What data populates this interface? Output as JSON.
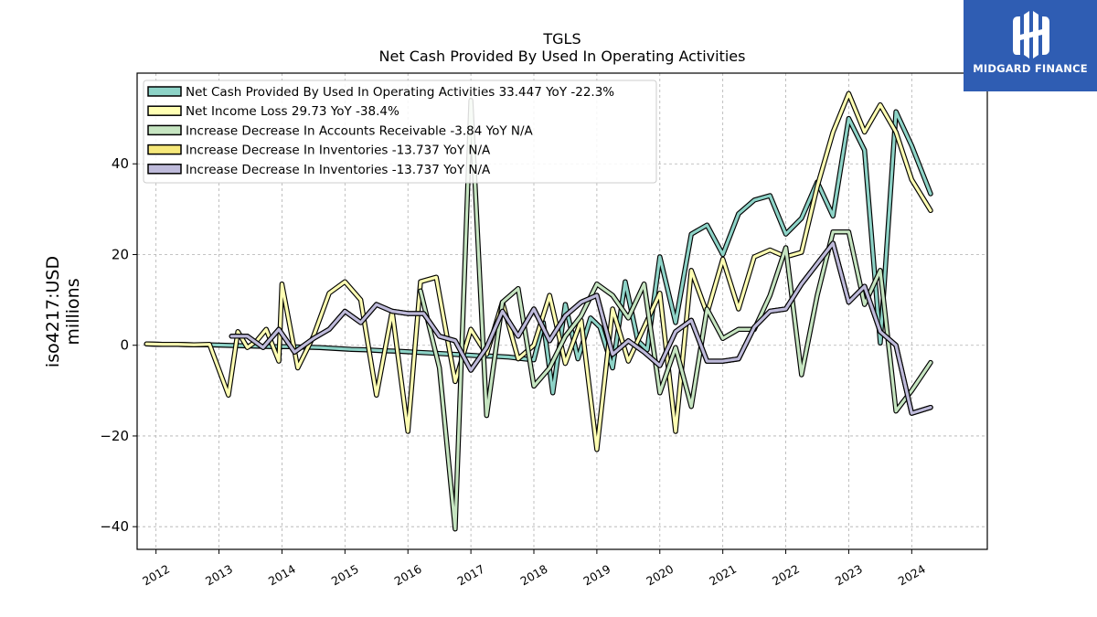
{
  "chart_data": {
    "type": "line",
    "title": "TGLS",
    "subtitle": "Net Cash Provided By Used In Operating Activities",
    "ylabel_line1": "iso4217:USD",
    "ylabel_line2": "millions",
    "xlabel": "",
    "xlim": [
      2011.7,
      2025.2
    ],
    "ylim": [
      -45,
      60
    ],
    "yticks": [
      -40,
      -20,
      0,
      20,
      40
    ],
    "ytick_labels": [
      "−40",
      "−20",
      "0",
      "20",
      "40"
    ],
    "xticks": [
      2012,
      2013,
      2014,
      2015,
      2016,
      2017,
      2018,
      2019,
      2020,
      2021,
      2022,
      2023,
      2024
    ],
    "xtick_labels": [
      "2012",
      "2013",
      "2014",
      "2015",
      "2016",
      "2017",
      "2018",
      "2019",
      "2020",
      "2021",
      "2022",
      "2023",
      "2024"
    ],
    "grid": true,
    "legend_position": "top-left",
    "series": [
      {
        "name": "Net Cash Provided By Used In Operating Activities",
        "legend_label": "Net Cash Provided By Used In Operating Activities  33.447 YoY -22.3%",
        "color": "#8dd3c7",
        "points": [
          [
            2011.85,
            0.3
          ],
          [
            2012.1,
            0.2
          ],
          [
            2012.35,
            0.2
          ],
          [
            2012.6,
            0.1
          ],
          [
            2012.85,
            0.1
          ],
          [
            2013.1,
            0.0
          ],
          [
            2013.35,
            -0.1
          ],
          [
            2013.6,
            -0.2
          ],
          [
            2013.85,
            -0.3
          ],
          [
            2014.1,
            -0.3
          ],
          [
            2014.35,
            -0.4
          ],
          [
            2014.6,
            -0.5
          ],
          [
            2014.85,
            -0.7
          ],
          [
            2015.1,
            -0.9
          ],
          [
            2015.35,
            -1.0
          ],
          [
            2015.6,
            -1.2
          ],
          [
            2015.85,
            -1.3
          ],
          [
            2016.1,
            -1.5
          ],
          [
            2016.35,
            -1.7
          ],
          [
            2016.6,
            -1.9
          ],
          [
            2016.85,
            -2.1
          ],
          [
            2017.1,
            -2.3
          ],
          [
            2017.35,
            -2.4
          ],
          [
            2017.6,
            -2.6
          ],
          [
            2017.85,
            -3.0
          ],
          [
            2018.0,
            -3.2
          ],
          [
            2018.15,
            5.0
          ],
          [
            2018.3,
            -10.5
          ],
          [
            2018.5,
            9.0
          ],
          [
            2018.7,
            -3.0
          ],
          [
            2018.9,
            6.0
          ],
          [
            2019.05,
            4.0
          ],
          [
            2019.25,
            -5.0
          ],
          [
            2019.45,
            14.0
          ],
          [
            2019.65,
            1.0
          ],
          [
            2019.8,
            -1.0
          ],
          [
            2020.0,
            19.5
          ],
          [
            2020.25,
            5.0
          ],
          [
            2020.5,
            24.5
          ],
          [
            2020.75,
            26.5
          ],
          [
            2021.0,
            20.0
          ],
          [
            2021.25,
            29.0
          ],
          [
            2021.5,
            32.0
          ],
          [
            2021.75,
            33.0
          ],
          [
            2022.0,
            24.5
          ],
          [
            2022.25,
            28.0
          ],
          [
            2022.5,
            36.0
          ],
          [
            2022.75,
            28.5
          ],
          [
            2023.0,
            50.0
          ],
          [
            2023.25,
            43.0
          ],
          [
            2023.5,
            0.5
          ],
          [
            2023.75,
            51.5
          ],
          [
            2024.0,
            44.0
          ],
          [
            2024.3,
            33.4
          ]
        ]
      },
      {
        "name": "Net Income Loss",
        "legend_label": "Net Income Loss  29.73 YoY -38.4%",
        "color": "#ffffb3",
        "points": [
          [
            2011.85,
            0.3
          ],
          [
            2012.1,
            0.2
          ],
          [
            2012.35,
            0.2
          ],
          [
            2012.6,
            0.1
          ],
          [
            2012.85,
            0.2
          ],
          [
            2013.15,
            -11.0
          ],
          [
            2013.3,
            3.0
          ],
          [
            2013.45,
            -0.5
          ],
          [
            2013.6,
            1.0
          ],
          [
            2013.75,
            3.5
          ],
          [
            2013.95,
            -3.5
          ],
          [
            2014.0,
            13.5
          ],
          [
            2014.25,
            -5.0
          ],
          [
            2014.5,
            2.0
          ],
          [
            2014.75,
            11.5
          ],
          [
            2015.0,
            14.0
          ],
          [
            2015.25,
            10.0
          ],
          [
            2015.5,
            -11.0
          ],
          [
            2015.75,
            7.5
          ],
          [
            2016.0,
            -19.0
          ],
          [
            2016.2,
            14.0
          ],
          [
            2016.45,
            15.0
          ],
          [
            2016.75,
            -8.0
          ],
          [
            2017.0,
            3.5
          ],
          [
            2017.25,
            -2.0
          ],
          [
            2017.5,
            9.5
          ],
          [
            2017.75,
            -3.0
          ],
          [
            2018.0,
            0.0
          ],
          [
            2018.25,
            11.0
          ],
          [
            2018.5,
            -4.0
          ],
          [
            2018.75,
            5.5
          ],
          [
            2019.0,
            -23.0
          ],
          [
            2019.25,
            8.0
          ],
          [
            2019.5,
            -3.5
          ],
          [
            2019.75,
            4.0
          ],
          [
            2020.0,
            11.5
          ],
          [
            2020.25,
            -19.0
          ],
          [
            2020.5,
            16.5
          ],
          [
            2020.75,
            7.0
          ],
          [
            2021.0,
            19.0
          ],
          [
            2021.25,
            8.0
          ],
          [
            2021.5,
            19.5
          ],
          [
            2021.75,
            21.0
          ],
          [
            2022.0,
            19.5
          ],
          [
            2022.25,
            20.5
          ],
          [
            2022.5,
            35.0
          ],
          [
            2022.75,
            47.0
          ],
          [
            2023.0,
            55.5
          ],
          [
            2023.25,
            47.0
          ],
          [
            2023.5,
            53.0
          ],
          [
            2023.75,
            47.0
          ],
          [
            2024.0,
            36.5
          ],
          [
            2024.3,
            29.7
          ]
        ]
      },
      {
        "name": "Increase Decrease In Accounts Receivable",
        "legend_label": "Increase Decrease In Accounts Receivable  -3.84 YoY N/A",
        "color": "#c6e5c1",
        "points": [
          [
            2016.2,
            12.0
          ],
          [
            2016.5,
            -5.0
          ],
          [
            2016.75,
            -40.5
          ],
          [
            2017.0,
            54.0
          ],
          [
            2017.25,
            -15.5
          ],
          [
            2017.5,
            9.5
          ],
          [
            2017.75,
            12.5
          ],
          [
            2018.0,
            -9.0
          ],
          [
            2018.25,
            -5.0
          ],
          [
            2018.5,
            2.0
          ],
          [
            2018.75,
            6.5
          ],
          [
            2019.0,
            13.5
          ],
          [
            2019.25,
            11.0
          ],
          [
            2019.5,
            6.0
          ],
          [
            2019.75,
            13.5
          ],
          [
            2020.0,
            -10.5
          ],
          [
            2020.25,
            -0.5
          ],
          [
            2020.5,
            -13.5
          ],
          [
            2020.75,
            8.0
          ],
          [
            2021.0,
            1.5
          ],
          [
            2021.25,
            3.5
          ],
          [
            2021.5,
            3.5
          ],
          [
            2021.75,
            11.0
          ],
          [
            2022.0,
            21.5
          ],
          [
            2022.25,
            -6.5
          ],
          [
            2022.5,
            11.0
          ],
          [
            2022.75,
            25.0
          ],
          [
            2023.0,
            25.0
          ],
          [
            2023.25,
            9.0
          ],
          [
            2023.5,
            16.5
          ],
          [
            2023.75,
            -14.5
          ],
          [
            2024.0,
            -10.0
          ],
          [
            2024.3,
            -3.8
          ]
        ]
      },
      {
        "name": "Increase Decrease In Inventories",
        "legend_label": "Increase Decrease In Inventories  -13.737 YoY N/A",
        "color": "#f6e87a",
        "points": [
          [
            2013.2,
            2.0
          ],
          [
            2013.45,
            2.0
          ],
          [
            2013.7,
            -0.5
          ],
          [
            2013.95,
            3.5
          ],
          [
            2014.2,
            -1.5
          ],
          [
            2014.5,
            1.5
          ],
          [
            2014.75,
            3.5
          ],
          [
            2015.0,
            7.5
          ],
          [
            2015.25,
            5.0
          ],
          [
            2015.5,
            9.0
          ],
          [
            2015.75,
            7.5
          ],
          [
            2016.0,
            7.0
          ],
          [
            2016.25,
            7.0
          ],
          [
            2016.5,
            2.0
          ],
          [
            2016.75,
            1.0
          ],
          [
            2017.0,
            -5.5
          ],
          [
            2017.25,
            -0.5
          ],
          [
            2017.5,
            7.5
          ],
          [
            2017.75,
            2.0
          ],
          [
            2018.0,
            8.0
          ],
          [
            2018.25,
            1.0
          ],
          [
            2018.5,
            6.5
          ],
          [
            2018.75,
            9.5
          ],
          [
            2019.0,
            11.0
          ],
          [
            2019.25,
            -2.0
          ],
          [
            2019.5,
            1.0
          ],
          [
            2019.75,
            -1.5
          ],
          [
            2020.0,
            -4.5
          ],
          [
            2020.25,
            3.0
          ],
          [
            2020.5,
            5.5
          ],
          [
            2020.75,
            -3.5
          ],
          [
            2021.0,
            -3.5
          ],
          [
            2021.25,
            -3.0
          ],
          [
            2021.5,
            4.0
          ],
          [
            2021.75,
            7.5
          ],
          [
            2022.0,
            8.0
          ],
          [
            2022.25,
            13.5
          ],
          [
            2022.5,
            18.0
          ],
          [
            2022.75,
            22.5
          ],
          [
            2023.0,
            9.5
          ],
          [
            2023.25,
            13.0
          ],
          [
            2023.5,
            3.0
          ],
          [
            2023.75,
            0.0
          ],
          [
            2024.0,
            -15.0
          ],
          [
            2024.3,
            -13.7
          ]
        ]
      },
      {
        "name": "Increase Decrease In Inventories",
        "legend_label": "Increase Decrease In Inventories  -13.737 YoY N/A",
        "color": "#bebada",
        "points": [
          [
            2013.2,
            2.0
          ],
          [
            2013.45,
            2.0
          ],
          [
            2013.7,
            -0.5
          ],
          [
            2013.95,
            3.5
          ],
          [
            2014.2,
            -1.5
          ],
          [
            2014.5,
            1.5
          ],
          [
            2014.75,
            3.5
          ],
          [
            2015.0,
            7.5
          ],
          [
            2015.25,
            5.0
          ],
          [
            2015.5,
            9.0
          ],
          [
            2015.75,
            7.5
          ],
          [
            2016.0,
            7.0
          ],
          [
            2016.25,
            7.0
          ],
          [
            2016.5,
            2.0
          ],
          [
            2016.75,
            1.0
          ],
          [
            2017.0,
            -5.5
          ],
          [
            2017.25,
            -0.5
          ],
          [
            2017.5,
            7.5
          ],
          [
            2017.75,
            2.0
          ],
          [
            2018.0,
            8.0
          ],
          [
            2018.25,
            1.0
          ],
          [
            2018.5,
            6.5
          ],
          [
            2018.75,
            9.5
          ],
          [
            2019.0,
            11.0
          ],
          [
            2019.25,
            -2.0
          ],
          [
            2019.5,
            1.0
          ],
          [
            2019.75,
            -1.5
          ],
          [
            2020.0,
            -4.5
          ],
          [
            2020.25,
            3.0
          ],
          [
            2020.5,
            5.5
          ],
          [
            2020.75,
            -3.5
          ],
          [
            2021.0,
            -3.5
          ],
          [
            2021.25,
            -3.0
          ],
          [
            2021.5,
            4.0
          ],
          [
            2021.75,
            7.5
          ],
          [
            2022.0,
            8.0
          ],
          [
            2022.25,
            13.5
          ],
          [
            2022.5,
            18.0
          ],
          [
            2022.75,
            22.5
          ],
          [
            2023.0,
            9.5
          ],
          [
            2023.25,
            13.0
          ],
          [
            2023.5,
            3.0
          ],
          [
            2023.75,
            0.0
          ],
          [
            2024.0,
            -15.0
          ],
          [
            2024.3,
            -13.7
          ]
        ]
      }
    ]
  },
  "logo": {
    "text": "MIDGARD FINANCE",
    "icon": "midgard-finance-logo-icon",
    "bg_color": "#2f5db3"
  }
}
